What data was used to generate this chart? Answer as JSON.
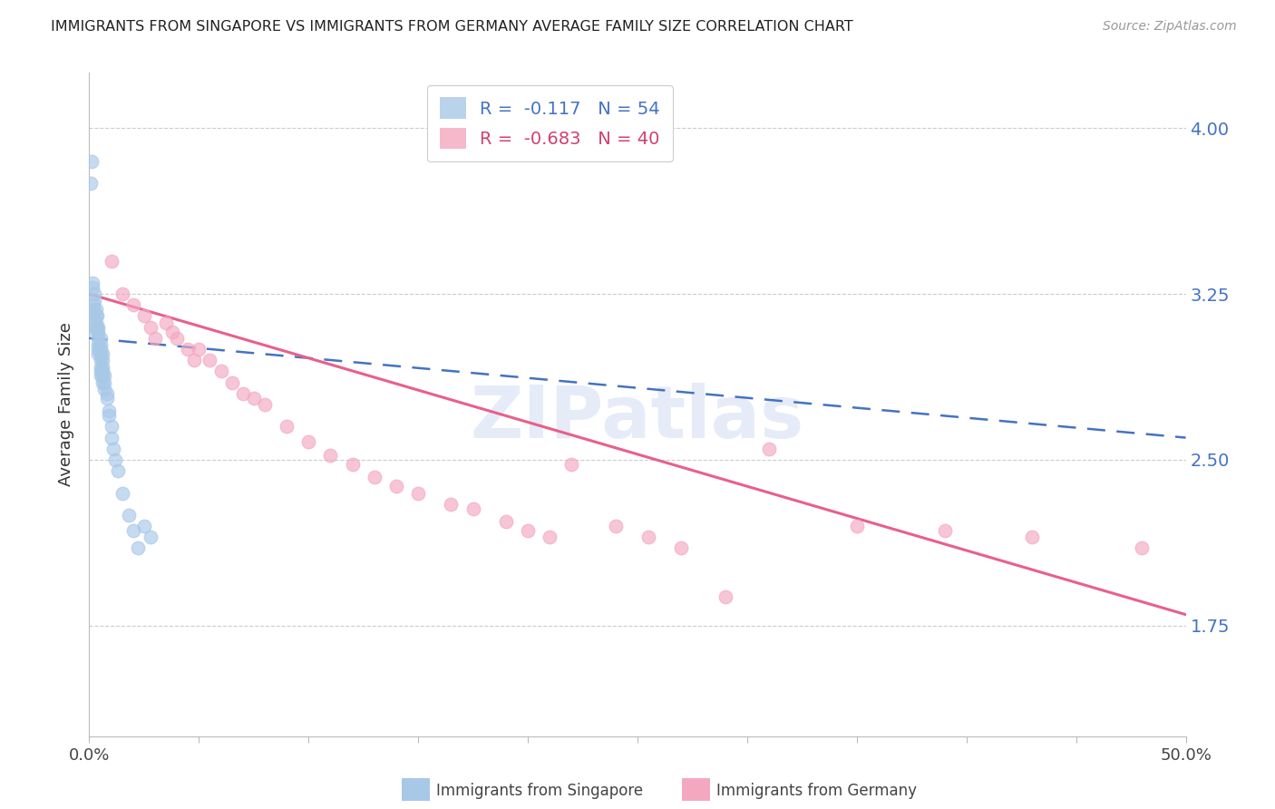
{
  "title": "IMMIGRANTS FROM SINGAPORE VS IMMIGRANTS FROM GERMANY AVERAGE FAMILY SIZE CORRELATION CHART",
  "source": "Source: ZipAtlas.com",
  "ylabel": "Average Family Size",
  "right_yticks": [
    1.75,
    2.5,
    3.25,
    4.0
  ],
  "watermark": "ZIPatlas",
  "singapore_color": "#a8c8e8",
  "germany_color": "#f4a8c0",
  "singapore_line_color": "#4472C4",
  "germany_line_color": "#e8608a",
  "xmin": 0.0,
  "xmax": 0.5,
  "ymin": 1.25,
  "ymax": 4.25,
  "singapore_scatter_x": [
    0.0005,
    0.001,
    0.0015,
    0.0015,
    0.002,
    0.002,
    0.002,
    0.0025,
    0.0025,
    0.003,
    0.003,
    0.003,
    0.003,
    0.003,
    0.0035,
    0.0035,
    0.004,
    0.004,
    0.004,
    0.004,
    0.004,
    0.004,
    0.005,
    0.005,
    0.005,
    0.005,
    0.005,
    0.005,
    0.005,
    0.005,
    0.006,
    0.006,
    0.006,
    0.006,
    0.006,
    0.006,
    0.007,
    0.007,
    0.007,
    0.008,
    0.008,
    0.009,
    0.009,
    0.01,
    0.01,
    0.011,
    0.012,
    0.013,
    0.015,
    0.018,
    0.02,
    0.022,
    0.025,
    0.028
  ],
  "singapore_scatter_y": [
    3.75,
    3.85,
    3.3,
    3.28,
    3.2,
    3.18,
    3.15,
    3.25,
    3.22,
    3.18,
    3.15,
    3.12,
    3.1,
    3.08,
    3.15,
    3.1,
    3.1,
    3.08,
    3.05,
    3.02,
    3.0,
    2.98,
    3.05,
    3.02,
    3.0,
    2.98,
    2.95,
    2.92,
    2.9,
    2.88,
    2.98,
    2.95,
    2.92,
    2.9,
    2.88,
    2.85,
    2.88,
    2.85,
    2.82,
    2.8,
    2.78,
    2.72,
    2.7,
    2.65,
    2.6,
    2.55,
    2.5,
    2.45,
    2.35,
    2.25,
    2.18,
    2.1,
    2.2,
    2.15
  ],
  "germany_scatter_x": [
    0.01,
    0.015,
    0.02,
    0.025,
    0.028,
    0.03,
    0.035,
    0.038,
    0.04,
    0.045,
    0.048,
    0.05,
    0.055,
    0.06,
    0.065,
    0.07,
    0.075,
    0.08,
    0.09,
    0.1,
    0.11,
    0.12,
    0.13,
    0.14,
    0.15,
    0.165,
    0.175,
    0.19,
    0.2,
    0.21,
    0.22,
    0.24,
    0.255,
    0.27,
    0.29,
    0.31,
    0.35,
    0.39,
    0.43,
    0.48
  ],
  "germany_scatter_y": [
    3.4,
    3.25,
    3.2,
    3.15,
    3.1,
    3.05,
    3.12,
    3.08,
    3.05,
    3.0,
    2.95,
    3.0,
    2.95,
    2.9,
    2.85,
    2.8,
    2.78,
    2.75,
    2.65,
    2.58,
    2.52,
    2.48,
    2.42,
    2.38,
    2.35,
    2.3,
    2.28,
    2.22,
    2.18,
    2.15,
    2.48,
    2.2,
    2.15,
    2.1,
    1.88,
    2.55,
    2.2,
    2.18,
    2.15,
    2.1
  ],
  "sg_line_x": [
    0.0,
    0.5
  ],
  "sg_line_y": [
    3.05,
    2.6
  ],
  "de_line_x": [
    0.0,
    0.5
  ],
  "de_line_y": [
    3.25,
    1.8
  ]
}
